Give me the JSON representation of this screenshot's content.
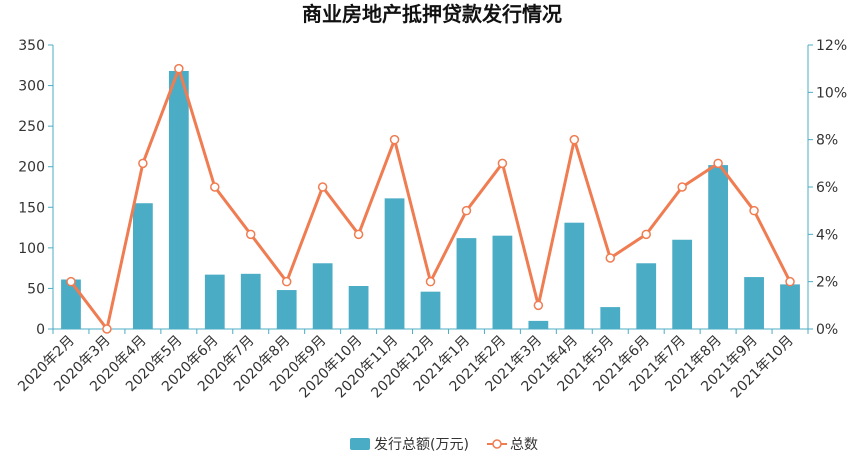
{
  "chart_data": {
    "type": "bar",
    "title": "商业房地产抵押贷款发行情况",
    "categories": [
      "2020年2月",
      "2020年3月",
      "2020年4月",
      "2020年5月",
      "2020年6月",
      "2020年7月",
      "2020年8月",
      "2020年9月",
      "2020年10月",
      "2020年11月",
      "2020年12月",
      "2021年1月",
      "2021年2月",
      "2021年3月",
      "2021年4月",
      "2021年5月",
      "2021年6月",
      "2021年7月",
      "2021年8月",
      "2021年9月",
      "2021年10月"
    ],
    "series": [
      {
        "name": "发行总额(万元)",
        "type": "bar",
        "axis": "left",
        "color": "#4bacc6",
        "values": [
          61,
          0,
          155,
          318,
          67,
          68,
          48,
          81,
          53,
          161,
          46,
          112,
          115,
          10,
          131,
          27,
          81,
          110,
          202,
          64,
          55
        ]
      },
      {
        "name": "总数",
        "type": "line",
        "axis": "right",
        "color": "#f07c52",
        "values": [
          2,
          0,
          7,
          11,
          6,
          4,
          2,
          6,
          4,
          8,
          2,
          5,
          7,
          1,
          8,
          3,
          4,
          6,
          7,
          5,
          2
        ]
      }
    ],
    "y_left": {
      "min": 0,
      "max": 350,
      "ticks": [
        "0",
        "50",
        "100",
        "150",
        "200",
        "250",
        "300",
        "350"
      ]
    },
    "y_right": {
      "min": 0,
      "max": 12,
      "ticks": [
        "0%",
        "2%",
        "4%",
        "6%",
        "8%",
        "10%",
        "12%"
      ]
    },
    "grid": false,
    "legend_position": "bottom-center",
    "axis_color": "#4bacc6"
  }
}
